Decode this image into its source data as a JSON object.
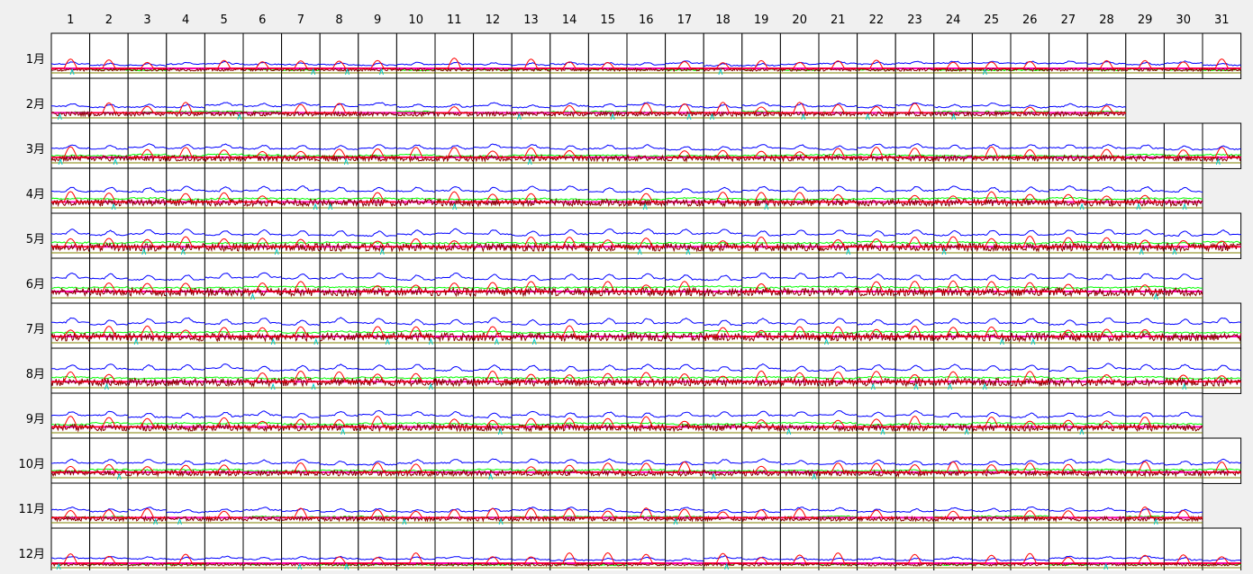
{
  "chart_data": {
    "type": "line",
    "grid": true,
    "layout": "small-multiples",
    "column_labels": [
      "1",
      "2",
      "3",
      "4",
      "5",
      "6",
      "7",
      "8",
      "9",
      "10",
      "11",
      "12",
      "13",
      "14",
      "15",
      "16",
      "17",
      "18",
      "19",
      "20",
      "21",
      "22",
      "23",
      "24",
      "25",
      "26",
      "27",
      "28",
      "29",
      "30",
      "31"
    ],
    "row_labels": [
      "1月",
      "2月",
      "3月",
      "4月",
      "5月",
      "6月",
      "7月",
      "8月",
      "9月",
      "10月",
      "11月",
      "12月"
    ],
    "days_in_month": [
      31,
      28,
      31,
      30,
      31,
      30,
      31,
      31,
      30,
      31,
      30,
      31
    ],
    "colors": {
      "background": "#f0f0f0",
      "cell": "#ffffff",
      "cell_border": "#000000",
      "series_blue": "#0000ff",
      "series_green": "#00ff00",
      "series_dark_red": "#8b0000",
      "series_red": "#ff0000",
      "series_magenta": "#ff00aa",
      "series_cyan": "#00cccc",
      "series_olive": "#808000"
    }
  }
}
